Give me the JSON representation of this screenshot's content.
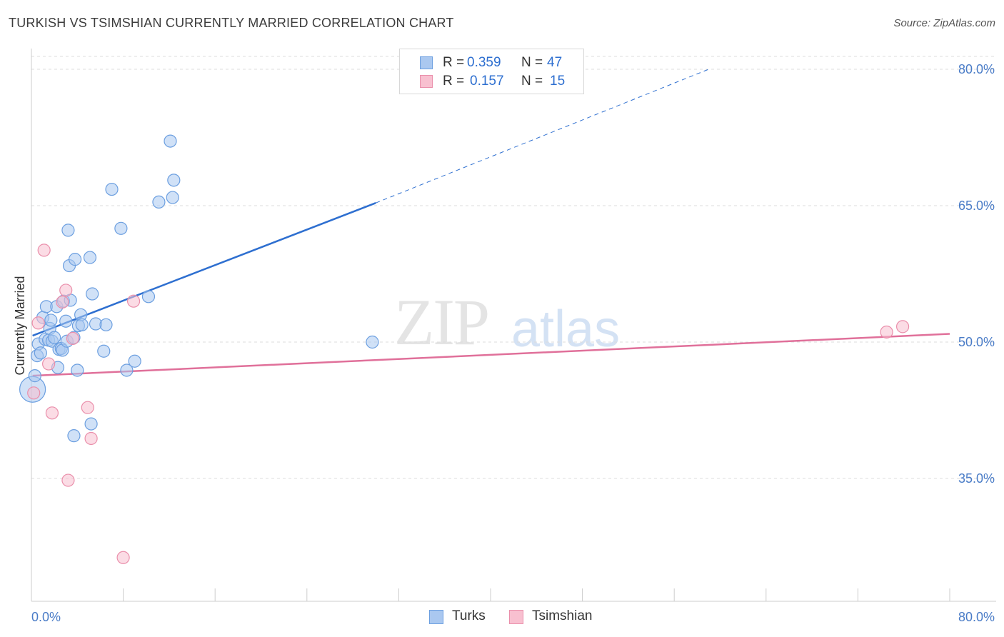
{
  "title": "TURKISH VS TSIMSHIAN CURRENTLY MARRIED CORRELATION CHART",
  "source": "Source: ZipAtlas.com",
  "watermark": {
    "zip": "ZIP",
    "atlas": "atlas"
  },
  "legend": {
    "rows": [
      {
        "r_label": "R =",
        "r_value": "0.359",
        "n_label": "N =",
        "n_value": "47",
        "color": "#aac8f0",
        "border": "#6c9fe0"
      },
      {
        "r_label": "R =",
        "r_value": "0.157",
        "n_label": "N =",
        "n_value": "15",
        "color": "#f8c0d0",
        "border": "#ea8fab"
      }
    ]
  },
  "bottom_legend": {
    "turks": "Turks",
    "tsimshian": "Tsimshian"
  },
  "chart_data": {
    "type": "scatter",
    "title": "TURKISH VS TSIMSHIAN CURRENTLY MARRIED CORRELATION CHART",
    "xlabel": "",
    "ylabel": "Currently Married",
    "xlim": [
      0,
      80
    ],
    "ylim": [
      22,
      81
    ],
    "x_tick_labels": [
      "0.0%",
      "80.0%"
    ],
    "y_ticks": [
      35,
      50,
      65,
      80
    ],
    "y_tick_labels": [
      "35.0%",
      "50.0%",
      "65.0%",
      "80.0%"
    ],
    "grid": true,
    "series": [
      {
        "name": "Turks",
        "color": "#6c9fe0",
        "fill": "#aac8f0",
        "points": [
          [
            0.1,
            44.8
          ],
          [
            0.3,
            46.3
          ],
          [
            0.5,
            48.5
          ],
          [
            0.6,
            49.8
          ],
          [
            0.8,
            48.8
          ],
          [
            1.0,
            52.7
          ],
          [
            1.2,
            50.3
          ],
          [
            1.3,
            53.9
          ],
          [
            1.5,
            50.2
          ],
          [
            1.6,
            51.5
          ],
          [
            1.7,
            52.4
          ],
          [
            1.8,
            50.1
          ],
          [
            2.0,
            50.5
          ],
          [
            2.2,
            53.9
          ],
          [
            2.3,
            47.2
          ],
          [
            2.4,
            49.2
          ],
          [
            2.6,
            49.3
          ],
          [
            2.7,
            49.1
          ],
          [
            2.8,
            54.5
          ],
          [
            3.0,
            52.3
          ],
          [
            3.1,
            50.1
          ],
          [
            3.2,
            62.3
          ],
          [
            3.3,
            58.4
          ],
          [
            3.4,
            54.6
          ],
          [
            3.7,
            50.5
          ],
          [
            3.8,
            59.1
          ],
          [
            4.0,
            46.9
          ],
          [
            4.1,
            51.8
          ],
          [
            4.3,
            53.0
          ],
          [
            4.4,
            51.9
          ],
          [
            5.1,
            59.3
          ],
          [
            5.3,
            55.3
          ],
          [
            5.6,
            52.0
          ],
          [
            6.3,
            49.0
          ],
          [
            6.5,
            51.9
          ],
          [
            7.0,
            66.8
          ],
          [
            7.8,
            62.5
          ],
          [
            8.3,
            46.9
          ],
          [
            9.0,
            47.9
          ],
          [
            10.2,
            55.0
          ],
          [
            11.1,
            65.4
          ],
          [
            12.1,
            72.1
          ],
          [
            12.3,
            65.9
          ],
          [
            12.4,
            67.8
          ],
          [
            29.7,
            50.0
          ],
          [
            5.2,
            41.0
          ],
          [
            3.7,
            39.7
          ]
        ]
      },
      {
        "name": "Tsimshian",
        "color": "#ea8fab",
        "fill": "#f8c0d0",
        "points": [
          [
            0.2,
            44.4
          ],
          [
            0.6,
            52.1
          ],
          [
            1.1,
            60.1
          ],
          [
            1.5,
            47.6
          ],
          [
            1.8,
            42.2
          ],
          [
            2.7,
            54.4
          ],
          [
            3.0,
            55.7
          ],
          [
            3.2,
            34.8
          ],
          [
            3.6,
            50.4
          ],
          [
            4.9,
            42.8
          ],
          [
            5.2,
            39.4
          ],
          [
            8.0,
            26.3
          ],
          [
            8.9,
            54.5
          ],
          [
            74.5,
            51.1
          ],
          [
            75.9,
            51.7
          ]
        ]
      }
    ],
    "trendlines": [
      {
        "series": "Turks",
        "color": "#2e6fd0",
        "x_start": 0.1,
        "y_start": 50.7,
        "x_solid_end": 30.0,
        "y_solid_end": 65.3,
        "x_dash_end": 59.0,
        "y_dash_end": 80.0
      },
      {
        "series": "Tsimshian",
        "color": "#e0709a",
        "x_start": 0.1,
        "y_start": 46.3,
        "x_end": 80.0,
        "y_end": 50.9
      }
    ]
  }
}
